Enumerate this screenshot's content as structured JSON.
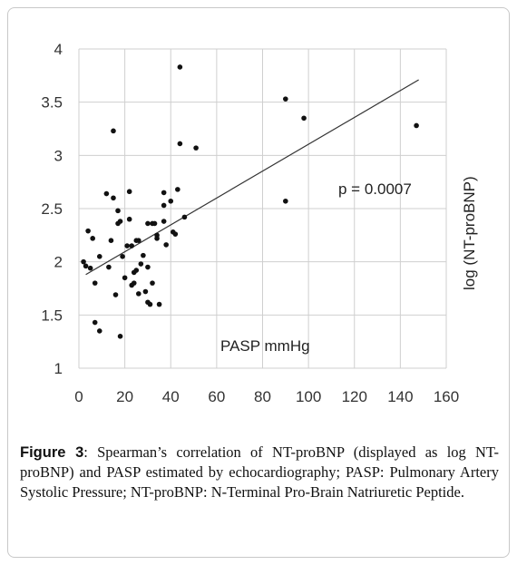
{
  "caption": {
    "label": "Figure 3",
    "text": ": Spearman’s correlation of NT-proBNP (displayed as log NT-proBNP) and PASP estimated by echocardiography; PASP: Pulmonary Artery Systolic Pressure; NT-proBNP: N-Terminal Pro-Brain Natriuretic Peptide."
  },
  "chart_data": {
    "type": "scatter",
    "xlabel": "PASP mmHg",
    "ylabel": "log (NT-proBNP)",
    "annotation": "p = 0.0007",
    "xlim": [
      0,
      160
    ],
    "ylim": [
      1,
      4
    ],
    "xticks": [
      0,
      20,
      40,
      60,
      80,
      100,
      120,
      140,
      160
    ],
    "yticks": [
      1,
      1.5,
      2,
      2.5,
      3,
      3.5,
      4
    ],
    "grid": true,
    "colors": {
      "points": "#111111",
      "trendline": "#333333",
      "grid": "#cfcfcf"
    },
    "trendline": {
      "x": [
        3,
        148
      ],
      "y": [
        1.88,
        3.71
      ]
    },
    "points": [
      {
        "x": 2,
        "y": 2.0
      },
      {
        "x": 3,
        "y": 1.96
      },
      {
        "x": 4,
        "y": 2.29
      },
      {
        "x": 5,
        "y": 1.94
      },
      {
        "x": 6,
        "y": 2.22
      },
      {
        "x": 7,
        "y": 1.8
      },
      {
        "x": 7,
        "y": 1.43
      },
      {
        "x": 9,
        "y": 1.35
      },
      {
        "x": 9,
        "y": 2.05
      },
      {
        "x": 12,
        "y": 2.64
      },
      {
        "x": 13,
        "y": 1.95
      },
      {
        "x": 14,
        "y": 2.2
      },
      {
        "x": 15,
        "y": 2.6
      },
      {
        "x": 15,
        "y": 3.23
      },
      {
        "x": 16,
        "y": 1.69
      },
      {
        "x": 17,
        "y": 2.48
      },
      {
        "x": 17,
        "y": 2.36
      },
      {
        "x": 18,
        "y": 2.38
      },
      {
        "x": 18,
        "y": 1.3
      },
      {
        "x": 19,
        "y": 2.05
      },
      {
        "x": 20,
        "y": 1.85
      },
      {
        "x": 21,
        "y": 2.15
      },
      {
        "x": 22,
        "y": 2.66
      },
      {
        "x": 22,
        "y": 2.4
      },
      {
        "x": 23,
        "y": 1.78
      },
      {
        "x": 23,
        "y": 2.15
      },
      {
        "x": 24,
        "y": 1.9
      },
      {
        "x": 24,
        "y": 1.8
      },
      {
        "x": 25,
        "y": 2.2
      },
      {
        "x": 25,
        "y": 1.92
      },
      {
        "x": 26,
        "y": 2.2
      },
      {
        "x": 26,
        "y": 1.7
      },
      {
        "x": 27,
        "y": 1.98
      },
      {
        "x": 28,
        "y": 2.06
      },
      {
        "x": 29,
        "y": 1.72
      },
      {
        "x": 30,
        "y": 2.36
      },
      {
        "x": 30,
        "y": 1.62
      },
      {
        "x": 30,
        "y": 1.95
      },
      {
        "x": 31,
        "y": 1.6
      },
      {
        "x": 32,
        "y": 2.36
      },
      {
        "x": 32,
        "y": 1.8
      },
      {
        "x": 33,
        "y": 2.36
      },
      {
        "x": 34,
        "y": 2.25
      },
      {
        "x": 34,
        "y": 2.22
      },
      {
        "x": 35,
        "y": 1.6
      },
      {
        "x": 37,
        "y": 2.53
      },
      {
        "x": 37,
        "y": 2.65
      },
      {
        "x": 37,
        "y": 2.38
      },
      {
        "x": 38,
        "y": 2.16
      },
      {
        "x": 40,
        "y": 2.57
      },
      {
        "x": 41,
        "y": 2.28
      },
      {
        "x": 42,
        "y": 2.26
      },
      {
        "x": 43,
        "y": 2.68
      },
      {
        "x": 44,
        "y": 3.83
      },
      {
        "x": 44,
        "y": 3.11
      },
      {
        "x": 46,
        "y": 2.42
      },
      {
        "x": 51,
        "y": 3.07
      },
      {
        "x": 90,
        "y": 3.53
      },
      {
        "x": 90,
        "y": 2.57
      },
      {
        "x": 98,
        "y": 3.35
      },
      {
        "x": 147,
        "y": 3.28
      }
    ]
  }
}
